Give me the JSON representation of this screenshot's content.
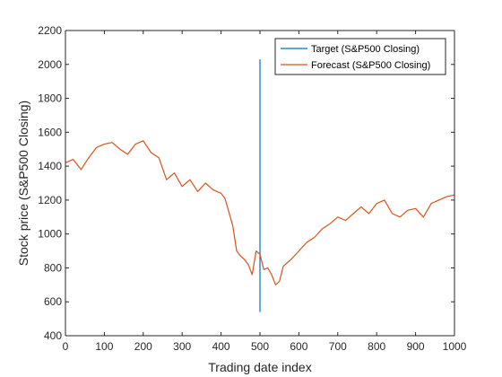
{
  "chart_data": {
    "type": "line",
    "title": "",
    "xlabel": "Trading date index",
    "ylabel": "Stock price (S&P500 Closing)",
    "xlim": [
      0,
      1000
    ],
    "ylim": [
      400,
      2200
    ],
    "xticks": [
      0,
      100,
      200,
      300,
      400,
      500,
      600,
      700,
      800,
      900,
      1000
    ],
    "yticks": [
      400,
      600,
      800,
      1000,
      1200,
      1400,
      1600,
      1800,
      2000,
      2200
    ],
    "grid": false,
    "legend_position": "top-right",
    "series": [
      {
        "name": "Target (S&P500 Closing)",
        "color": "#0072BD",
        "x": [
          500,
          500
        ],
        "y": [
          540,
          2030
        ]
      },
      {
        "name": "Forecast (S&P500 Closing)",
        "color": "#D95319",
        "x": [
          0,
          20,
          40,
          60,
          80,
          100,
          120,
          140,
          160,
          180,
          200,
          220,
          240,
          260,
          280,
          300,
          320,
          340,
          360,
          380,
          400,
          410,
          420,
          430,
          440,
          450,
          460,
          470,
          480,
          490,
          500,
          510,
          520,
          530,
          540,
          550,
          560,
          580,
          600,
          620,
          640,
          660,
          680,
          700,
          720,
          740,
          760,
          780,
          800,
          820,
          840,
          860,
          880,
          900,
          920,
          940,
          960,
          980,
          1000
        ],
        "y": [
          1420,
          1440,
          1380,
          1450,
          1510,
          1530,
          1540,
          1500,
          1470,
          1530,
          1550,
          1480,
          1450,
          1320,
          1360,
          1280,
          1320,
          1250,
          1300,
          1260,
          1240,
          1210,
          1130,
          1050,
          900,
          870,
          850,
          820,
          760,
          900,
          880,
          790,
          800,
          760,
          700,
          720,
          810,
          850,
          900,
          950,
          980,
          1030,
          1060,
          1100,
          1080,
          1120,
          1160,
          1120,
          1180,
          1200,
          1120,
          1100,
          1140,
          1150,
          1100,
          1180,
          1200,
          1220,
          1230
        ]
      }
    ]
  }
}
